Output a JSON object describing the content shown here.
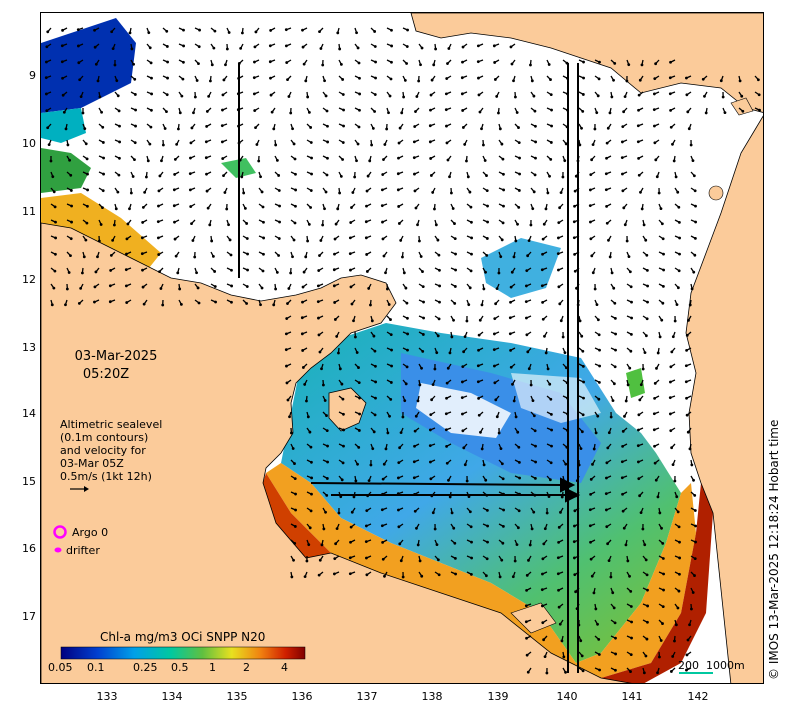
{
  "map": {
    "date": "03-Mar-2025",
    "time": "05:20Z",
    "altimetry_note": [
      "Altimetric sealevel",
      "(0.1m contours)",
      "and velocity for",
      "03-Mar 05Z",
      "0.5m/s (1kt 12h)"
    ],
    "argo_label": "Argo 0",
    "drifter_label": "drifter",
    "credit": "© IMOS 13-Mar-2025 12:18:24 Hobart time",
    "scale_bar": {
      "label_km": "200",
      "label_depth": "1000m"
    },
    "colorbar": {
      "title": "Chl-a mg/m3 OCi SNPP N20",
      "ticks": [
        "0.05",
        "0.1",
        "0.25",
        "0.5",
        "1",
        "2",
        "4"
      ]
    },
    "lat_ticks": [
      "9",
      "10",
      "11",
      "12",
      "13",
      "14",
      "15",
      "16",
      "17"
    ],
    "lon_ticks": [
      "133",
      "134",
      "135",
      "136",
      "137",
      "138",
      "139",
      "140",
      "141",
      "142"
    ],
    "colors": {
      "land": "#fbcb9a",
      "coast": "#000000",
      "argo_marker": "#ff00ff",
      "drifter_marker": "#ff00ff",
      "scale_line": "#00c8a0"
    }
  }
}
